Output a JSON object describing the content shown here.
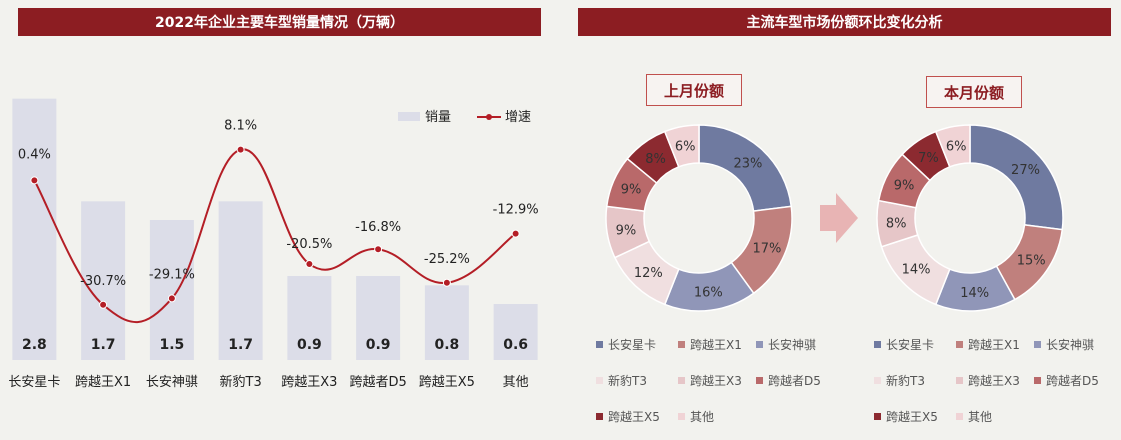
{
  "left_title": "2022年企业主要车型销量情况（万辆）",
  "right_title": "主流车型市场份额环比变化分析",
  "legend": {
    "sales": "销量",
    "growth": "增速"
  },
  "colors": {
    "bar": "#dcdde8",
    "line": "#b41e26",
    "banner": "#8c1d22"
  },
  "chart_data": [
    {
      "type": "bar",
      "categories": [
        "长安星卡",
        "跨越王X1",
        "长安神骐",
        "新豹T3",
        "跨越王X3",
        "跨越者D5",
        "跨越王X5",
        "其他"
      ],
      "series": [
        {
          "name": "销量",
          "type": "bar",
          "values": [
            2.8,
            1.7,
            1.5,
            1.7,
            0.9,
            0.9,
            0.8,
            0.6
          ]
        },
        {
          "name": "增速",
          "type": "line",
          "values": [
            0.4,
            -30.7,
            -29.1,
            8.1,
            -20.5,
            -16.8,
            -25.2,
            -12.9
          ],
          "labels": [
            "0.4%",
            "-30.7%",
            "-29.1%",
            "8.1%",
            "-20.5%",
            "-16.8%",
            "-25.2%",
            "-12.9%"
          ]
        }
      ],
      "value_labels": [
        "2.8",
        "1.7",
        "1.5",
        "1.7",
        "0.9",
        "0.9",
        "0.8",
        "0.6"
      ],
      "ylim": [
        0,
        3
      ],
      "y2lim": [
        -45,
        15
      ],
      "grid": false,
      "legend_position": "top-right"
    },
    {
      "type": "pie",
      "title": "上月份额",
      "labels": [
        "长安星卡",
        "跨越王X1",
        "长安神骐",
        "新豹T3",
        "跨越王X3",
        "跨越者D5",
        "跨越王X5",
        "其他"
      ],
      "values": [
        23,
        17,
        16,
        12,
        9,
        9,
        8,
        6
      ],
      "value_labels": [
        "23%",
        "17%",
        "16%",
        "12%",
        "9%",
        "9%",
        "8%",
        "6%"
      ],
      "colors": [
        "#6f7aa0",
        "#c0807d",
        "#9096b8",
        "#f0dfe0",
        "#e6c6c8",
        "#b9696a",
        "#8c2a30",
        "#f0d3d5"
      ]
    },
    {
      "type": "pie",
      "title": "本月份额",
      "labels": [
        "长安星卡",
        "跨越王X1",
        "长安神骐",
        "新豹T3",
        "跨越王X3",
        "跨越者D5",
        "跨越王X5",
        "其他"
      ],
      "values": [
        27,
        15,
        14,
        14,
        8,
        9,
        7,
        6
      ],
      "value_labels": [
        "27%",
        "15%",
        "14%",
        "14%",
        "8%",
        "9%",
        "7%",
        "6%"
      ],
      "colors": [
        "#6f7aa0",
        "#c0807d",
        "#9096b8",
        "#f0dfe0",
        "#e6c6c8",
        "#b9696a",
        "#8c2a30",
        "#f0d3d5"
      ]
    }
  ]
}
